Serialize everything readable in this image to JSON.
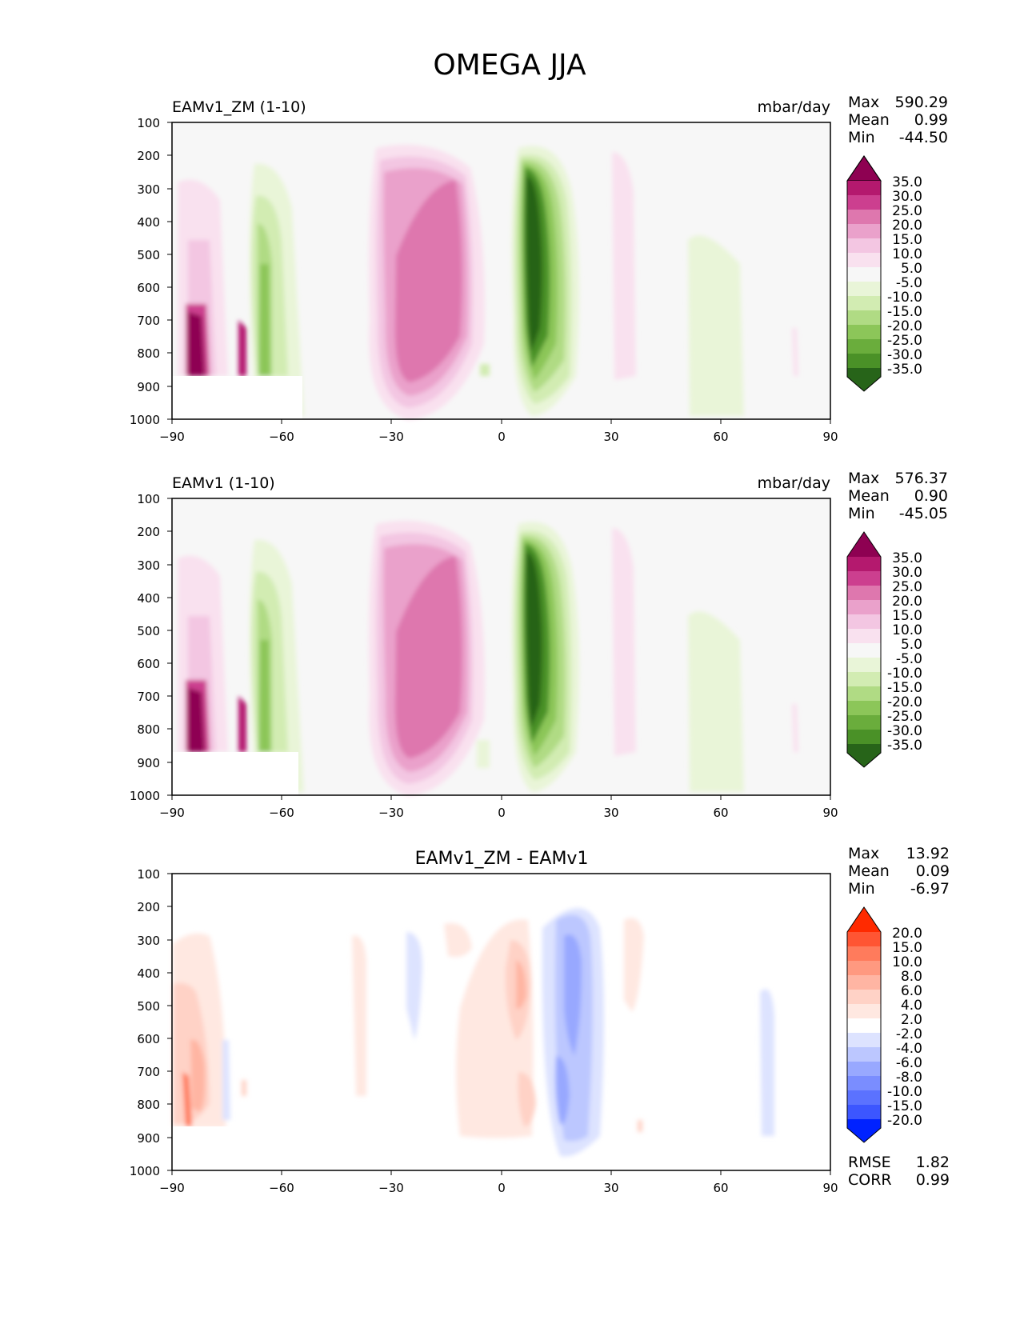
{
  "title": "OMEGA JJA",
  "chart_data": [
    {
      "type": "contour",
      "left_title": "EAMv1_ZM (1-10)",
      "units": "mbar/day",
      "stats": {
        "Max": "590.29",
        "Mean": "0.99",
        "Min": "-44.50"
      },
      "xticks": [
        "−90",
        "−60",
        "−30",
        "0",
        "30",
        "60",
        "90"
      ],
      "yticks": [
        "100",
        "200",
        "300",
        "400",
        "500",
        "600",
        "700",
        "800",
        "900",
        "1000"
      ],
      "xlim": [
        -90,
        90
      ],
      "ylim": [
        100,
        1000
      ],
      "colorbar": {
        "labels": [
          "35.0",
          "30.0",
          "25.0",
          "20.0",
          "15.0",
          "10.0",
          "5.0",
          "-5.0",
          "-10.0",
          "-15.0",
          "-20.0",
          "-25.0",
          "-30.0",
          "-35.0"
        ],
        "colors": [
          "#8e0152",
          "#b4196e",
          "#cc3f8f",
          "#de77ae",
          "#eaa1cb",
          "#f3c6e2",
          "#f9e1ef",
          "#f7f7f7",
          "#e9f5d8",
          "#d2ecb2",
          "#b0db84",
          "#8cc659",
          "#6aad3c",
          "#4a9127",
          "#2f7518",
          "#276419"
        ]
      }
    },
    {
      "type": "contour",
      "left_title": "EAMv1 (1-10)",
      "units": "mbar/day",
      "stats": {
        "Max": "576.37",
        "Mean": "0.90",
        "Min": "-45.05"
      },
      "xticks": [
        "−90",
        "−60",
        "−30",
        "0",
        "30",
        "60",
        "90"
      ],
      "yticks": [
        "100",
        "200",
        "300",
        "400",
        "500",
        "600",
        "700",
        "800",
        "900",
        "1000"
      ],
      "xlim": [
        -90,
        90
      ],
      "ylim": [
        100,
        1000
      ],
      "colorbar": {
        "labels": [
          "35.0",
          "30.0",
          "25.0",
          "20.0",
          "15.0",
          "10.0",
          "5.0",
          "-5.0",
          "-10.0",
          "-15.0",
          "-20.0",
          "-25.0",
          "-30.0",
          "-35.0"
        ],
        "colors": [
          "#8e0152",
          "#b4196e",
          "#cc3f8f",
          "#de77ae",
          "#eaa1cb",
          "#f3c6e2",
          "#f9e1ef",
          "#f7f7f7",
          "#e9f5d8",
          "#d2ecb2",
          "#b0db84",
          "#8cc659",
          "#6aad3c",
          "#4a9127",
          "#2f7518",
          "#276419"
        ]
      }
    },
    {
      "type": "contour",
      "center_title": "EAMv1_ZM - EAMv1",
      "stats": {
        "Max": "13.92",
        "Mean": "0.09",
        "Min": "-6.97"
      },
      "extra_stats": {
        "RMSE": "1.82",
        "CORR": "0.99"
      },
      "xticks": [
        "−90",
        "−60",
        "−30",
        "0",
        "30",
        "60",
        "90"
      ],
      "yticks": [
        "100",
        "200",
        "300",
        "400",
        "500",
        "600",
        "700",
        "800",
        "900",
        "1000"
      ],
      "xlim": [
        -90,
        90
      ],
      "ylim": [
        100,
        1000
      ],
      "colorbar": {
        "labels": [
          "20.0",
          "15.0",
          "10.0",
          "8.0",
          "6.0",
          "4.0",
          "2.0",
          "-2.0",
          "-4.0",
          "-6.0",
          "-8.0",
          "-10.0",
          "-15.0",
          "-20.0"
        ],
        "colors": [
          "#ff2a00",
          "#ff5533",
          "#ff7b5c",
          "#ff9980",
          "#ffb5a3",
          "#ffd2c6",
          "#ffe8e1",
          "#ffffff",
          "#dde3ff",
          "#bcc7ff",
          "#98a8ff",
          "#7a8dff",
          "#5b72ff",
          "#3c56ff",
          "#1e3cff",
          "#0022ff"
        ]
      }
    }
  ]
}
